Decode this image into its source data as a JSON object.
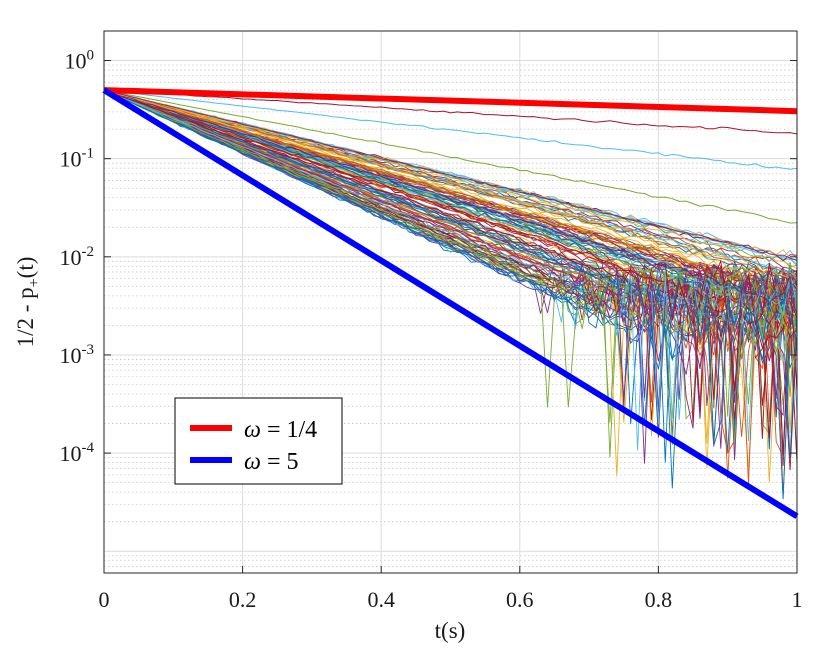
{
  "chart_data": {
    "type": "line",
    "title": "",
    "xlabel": "t(s)",
    "ylabel": {
      "base": "1/2 - p",
      "subscript": "+",
      "suffix": "(t)"
    },
    "xlim": [
      0,
      1
    ],
    "ylim": [
      6e-06,
      2
    ],
    "yscale": "log",
    "grid": true,
    "minor_grid": true,
    "legend_position": "lower-left",
    "xticks": [
      0,
      0.2,
      0.4,
      0.6,
      0.8,
      1
    ],
    "xtick_labels": [
      "0",
      "0.2",
      "0.4",
      "0.6",
      "0.8",
      "1"
    ],
    "yticks": [
      {
        "value": 1,
        "base": "10",
        "exp": "0"
      },
      {
        "value": 0.1,
        "base": "10",
        "exp": "-1"
      },
      {
        "value": 0.01,
        "base": "10",
        "exp": "-2"
      },
      {
        "value": 0.001,
        "base": "10",
        "exp": "-3"
      },
      {
        "value": 0.0001,
        "base": "10",
        "exp": "-4"
      }
    ],
    "series": [
      {
        "name": "ω = 1/4",
        "color": "#ff0000",
        "linewidth": "thick",
        "x": [
          0,
          1
        ],
        "y": [
          0.5,
          0.305
        ]
      },
      {
        "name": "ω = 5",
        "color": "#0000ff",
        "linewidth": "thick",
        "x": [
          0,
          1
        ],
        "y": [
          0.5,
          2.27e-05
        ]
      }
    ],
    "legend": [
      {
        "symbol": "ω",
        "text": " = 1/4",
        "color": "#ff0000"
      },
      {
        "symbol": "ω",
        "text": " = 5",
        "color": "#0000ff"
      }
    ],
    "ensemble": {
      "description": "many noisy decay trajectories between the two reference curves",
      "count": 120,
      "start_value": 0.5,
      "highlighted": [
        {
          "y_end": 0.18,
          "color": "#a2142f"
        },
        {
          "y_end": 0.077,
          "color": "#4dbeee"
        },
        {
          "y_end": 0.022,
          "color": "#77ac30"
        },
        {
          "y_end": 0.0093,
          "color": "#7e2f8e"
        }
      ],
      "palette": [
        "#0072bd",
        "#d95319",
        "#edb120",
        "#7e2f8e",
        "#77ac30",
        "#4dbeee",
        "#a2142f"
      ]
    }
  }
}
